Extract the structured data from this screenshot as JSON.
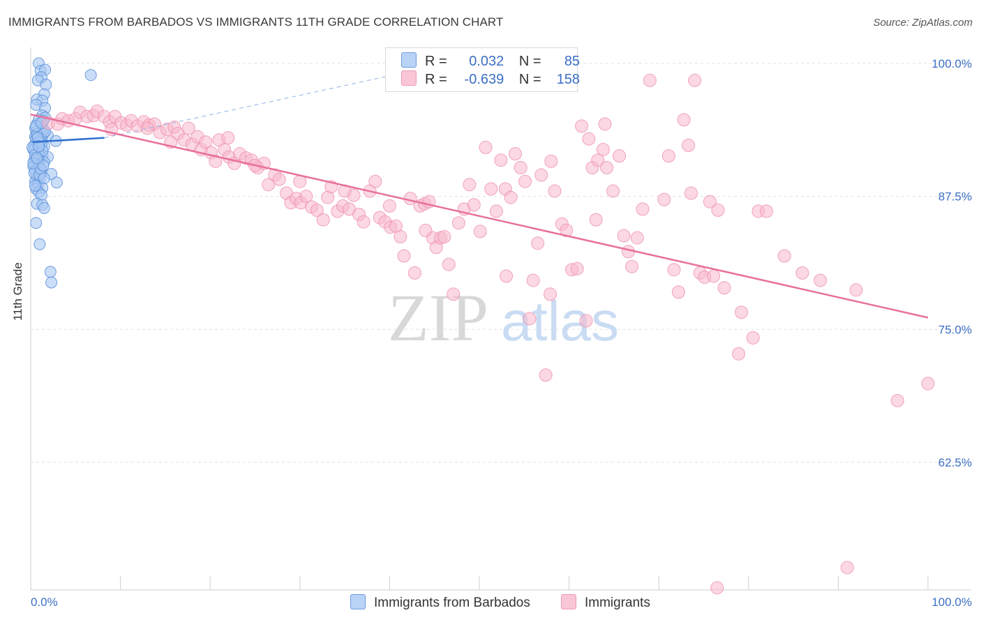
{
  "header": {
    "title": "IMMIGRANTS FROM BARBADOS VS IMMIGRANTS 11TH GRADE CORRELATION CHART",
    "source": "Source: ZipAtlas.com"
  },
  "legend": {
    "series1": {
      "r_label": "R =",
      "r_value": "0.032",
      "n_label": "N =",
      "n_value": "85"
    },
    "series2": {
      "r_label": "R =",
      "r_value": "-0.639",
      "n_label": "N =",
      "n_value": "158"
    }
  },
  "bottom_legend": {
    "series1": "Immigrants from Barbados",
    "series2": "Immigrants"
  },
  "colors": {
    "blue_fill": "#a8c8f4",
    "blue_stroke": "#5a8fd8",
    "blue_line": "#2f6fd0",
    "pink_fill": "#f7b8cc",
    "pink_stroke": "#ee8fae",
    "pink_line": "#e8709a",
    "tick_text": "#3b6fc4",
    "grid": "#e2e2e2"
  },
  "watermark": {
    "zip": "ZIP",
    "atlas": "atlas"
  },
  "chart_data": {
    "type": "scatter",
    "title": "IMMIGRANTS FROM BARBADOS VS IMMIGRANTS 11TH GRADE CORRELATION CHART",
    "xlabel": "",
    "ylabel": "11th Grade",
    "xlim": [
      0,
      100
    ],
    "ylim": [
      50.5,
      101.5
    ],
    "x_tick_labels": [
      "0.0%",
      "100.0%"
    ],
    "y_ticks": [
      100.0,
      87.5,
      75.0,
      62.5
    ],
    "y_tick_labels": [
      "100.0%",
      "87.5%",
      "75.0%",
      "62.5%"
    ],
    "grid": true,
    "legend_position": "top-center",
    "series": [
      {
        "name": "Immigrants from Barbados",
        "color": "#a8c8f4",
        "trend": {
          "x": [
            0.2,
            8.2
          ],
          "y": [
            92.6,
            93.0
          ],
          "extension_x": [
            8.2,
            42
          ],
          "extension_y": [
            93.0,
            99.2
          ]
        },
        "points": [
          [
            0.9,
            100.0
          ],
          [
            1.1,
            99.3
          ],
          [
            1.6,
            99.4
          ],
          [
            1.2,
            98.7
          ],
          [
            0.8,
            98.4
          ],
          [
            1.7,
            98.0
          ],
          [
            6.7,
            98.9
          ],
          [
            1.5,
            97.1
          ],
          [
            0.7,
            96.6
          ],
          [
            1.3,
            96.5
          ],
          [
            0.6,
            96.1
          ],
          [
            1.6,
            95.8
          ],
          [
            1.3,
            95.1
          ],
          [
            1.6,
            94.9
          ],
          [
            1.4,
            94.6
          ],
          [
            0.7,
            94.3
          ],
          [
            1.1,
            94.0
          ],
          [
            0.9,
            93.6
          ],
          [
            1.9,
            93.2
          ],
          [
            0.7,
            93.6
          ],
          [
            1.4,
            93.4
          ],
          [
            0.5,
            93.1
          ],
          [
            1.2,
            92.9
          ],
          [
            2.8,
            92.7
          ],
          [
            0.6,
            92.5
          ],
          [
            1.5,
            92.2
          ],
          [
            0.9,
            92.0
          ],
          [
            0.4,
            91.8
          ],
          [
            1.0,
            91.5
          ],
          [
            0.7,
            91.3
          ],
          [
            1.3,
            91.3
          ],
          [
            1.9,
            91.2
          ],
          [
            0.4,
            90.9
          ],
          [
            1.0,
            90.8
          ],
          [
            0.6,
            90.5
          ],
          [
            1.5,
            90.7
          ],
          [
            0.3,
            90.3
          ],
          [
            0.9,
            90.2
          ],
          [
            0.5,
            89.9
          ],
          [
            1.2,
            89.7
          ],
          [
            2.3,
            89.6
          ],
          [
            0.7,
            89.3
          ],
          [
            1.0,
            89.1
          ],
          [
            0.5,
            88.9
          ],
          [
            2.9,
            88.8
          ],
          [
            0.8,
            88.6
          ],
          [
            1.3,
            88.3
          ],
          [
            0.6,
            88.2
          ],
          [
            0.9,
            87.9
          ],
          [
            1.2,
            87.6
          ],
          [
            0.7,
            86.8
          ],
          [
            1.3,
            86.7
          ],
          [
            1.5,
            86.4
          ],
          [
            0.6,
            85.0
          ],
          [
            1.0,
            83.0
          ],
          [
            2.2,
            80.4
          ],
          [
            2.3,
            79.4
          ],
          [
            0.4,
            92.3
          ],
          [
            0.8,
            91.6
          ],
          [
            1.1,
            92.8
          ],
          [
            0.5,
            93.9
          ],
          [
            1.4,
            93.8
          ],
          [
            0.3,
            91.9
          ],
          [
            0.6,
            92.9
          ],
          [
            1.2,
            92.4
          ],
          [
            0.8,
            90.9
          ],
          [
            1.6,
            93.6
          ],
          [
            0.4,
            89.7
          ],
          [
            1.0,
            89.5
          ],
          [
            0.2,
            92.1
          ],
          [
            0.5,
            91.4
          ],
          [
            0.9,
            94.7
          ],
          [
            1.1,
            90.1
          ],
          [
            0.7,
            93.3
          ],
          [
            1.3,
            91.8
          ],
          [
            0.3,
            90.6
          ],
          [
            0.6,
            94.1
          ],
          [
            1.0,
            92.6
          ],
          [
            0.8,
            93.0
          ],
          [
            1.4,
            90.4
          ],
          [
            0.5,
            88.5
          ],
          [
            1.2,
            94.4
          ],
          [
            0.7,
            91.1
          ],
          [
            0.9,
            92.2
          ],
          [
            1.5,
            89.2
          ]
        ]
      },
      {
        "name": "Immigrants",
        "color": "#f7b8cc",
        "trend": {
          "x": [
            0.0,
            100.0
          ],
          "y": [
            95.2,
            76.1
          ]
        },
        "points": [
          [
            2.0,
            94.4
          ],
          [
            3.0,
            94.3
          ],
          [
            3.5,
            94.8
          ],
          [
            4.2,
            94.6
          ],
          [
            5.0,
            94.8
          ],
          [
            5.5,
            95.4
          ],
          [
            6.3,
            95.0
          ],
          [
            7.0,
            95.1
          ],
          [
            7.4,
            95.5
          ],
          [
            8.2,
            95.0
          ],
          [
            8.8,
            94.5
          ],
          [
            9.4,
            95.0
          ],
          [
            10.1,
            94.4
          ],
          [
            10.7,
            94.2
          ],
          [
            11.2,
            94.6
          ],
          [
            11.9,
            94.1
          ],
          [
            12.6,
            94.5
          ],
          [
            13.2,
            94.2
          ],
          [
            13.8,
            94.3
          ],
          [
            14.4,
            93.5
          ],
          [
            15.2,
            93.8
          ],
          [
            15.6,
            92.6
          ],
          [
            16.0,
            94.0
          ],
          [
            16.4,
            93.4
          ],
          [
            17.1,
            92.8
          ],
          [
            17.6,
            93.9
          ],
          [
            18.0,
            92.4
          ],
          [
            18.6,
            93.1
          ],
          [
            19.0,
            91.9
          ],
          [
            19.5,
            92.6
          ],
          [
            20.1,
            91.6
          ],
          [
            20.6,
            90.8
          ],
          [
            21.0,
            92.8
          ],
          [
            21.6,
            91.9
          ],
          [
            22.1,
            91.2
          ],
          [
            22.7,
            90.6
          ],
          [
            23.3,
            91.5
          ],
          [
            24.0,
            91.1
          ],
          [
            24.6,
            90.9
          ],
          [
            25.3,
            90.2
          ],
          [
            26.0,
            90.6
          ],
          [
            26.5,
            88.6
          ],
          [
            27.2,
            89.5
          ],
          [
            27.7,
            89.1
          ],
          [
            28.5,
            87.8
          ],
          [
            29.0,
            86.9
          ],
          [
            29.6,
            87.3
          ],
          [
            30.1,
            86.9
          ],
          [
            30.7,
            87.5
          ],
          [
            31.3,
            86.5
          ],
          [
            31.9,
            86.2
          ],
          [
            32.6,
            85.3
          ],
          [
            33.1,
            87.4
          ],
          [
            33.5,
            88.4
          ],
          [
            34.2,
            86.1
          ],
          [
            34.8,
            86.6
          ],
          [
            35.5,
            86.3
          ],
          [
            36.0,
            87.6
          ],
          [
            36.6,
            85.8
          ],
          [
            37.1,
            85.1
          ],
          [
            37.8,
            88.0
          ],
          [
            38.4,
            88.9
          ],
          [
            38.9,
            85.5
          ],
          [
            39.5,
            85.1
          ],
          [
            40.1,
            84.6
          ],
          [
            40.7,
            84.7
          ],
          [
            41.2,
            83.7
          ],
          [
            41.6,
            81.9
          ],
          [
            42.3,
            87.3
          ],
          [
            42.8,
            80.3
          ],
          [
            43.4,
            86.6
          ],
          [
            43.9,
            86.8
          ],
          [
            44.4,
            87.0
          ],
          [
            44.8,
            83.6
          ],
          [
            45.2,
            82.7
          ],
          [
            45.7,
            83.6
          ],
          [
            46.1,
            83.7
          ],
          [
            46.6,
            81.1
          ],
          [
            47.1,
            78.3
          ],
          [
            47.7,
            85.0
          ],
          [
            48.3,
            86.3
          ],
          [
            48.9,
            88.6
          ],
          [
            49.4,
            86.7
          ],
          [
            50.1,
            84.2
          ],
          [
            50.7,
            92.1
          ],
          [
            51.3,
            88.2
          ],
          [
            51.9,
            86.1
          ],
          [
            52.4,
            90.9
          ],
          [
            52.9,
            88.2
          ],
          [
            53.5,
            87.4
          ],
          [
            54.0,
            91.5
          ],
          [
            54.6,
            90.2
          ],
          [
            55.1,
            88.9
          ],
          [
            55.6,
            76.0
          ],
          [
            56.0,
            79.6
          ],
          [
            56.5,
            83.1
          ],
          [
            56.9,
            89.5
          ],
          [
            57.4,
            70.7
          ],
          [
            57.9,
            78.3
          ],
          [
            58.4,
            88.0
          ],
          [
            59.2,
            84.9
          ],
          [
            59.7,
            84.3
          ],
          [
            60.3,
            80.6
          ],
          [
            60.9,
            80.7
          ],
          [
            61.4,
            94.1
          ],
          [
            61.9,
            75.8
          ],
          [
            62.2,
            92.9
          ],
          [
            62.6,
            90.2
          ],
          [
            63.2,
            90.9
          ],
          [
            63.8,
            91.9
          ],
          [
            64.2,
            90.2
          ],
          [
            64.9,
            88.0
          ],
          [
            65.6,
            91.3
          ],
          [
            66.1,
            83.8
          ],
          [
            66.6,
            82.3
          ],
          [
            67.0,
            80.9
          ],
          [
            67.6,
            83.6
          ],
          [
            68.2,
            86.3
          ],
          [
            69.0,
            98.4
          ],
          [
            70.6,
            87.2
          ],
          [
            71.1,
            91.3
          ],
          [
            71.7,
            80.6
          ],
          [
            72.2,
            78.5
          ],
          [
            72.8,
            94.7
          ],
          [
            73.3,
            92.3
          ],
          [
            73.6,
            87.8
          ],
          [
            74.6,
            80.3
          ],
          [
            75.1,
            79.9
          ],
          [
            75.7,
            87.0
          ],
          [
            76.1,
            80.0
          ],
          [
            76.6,
            86.2
          ],
          [
            77.3,
            78.9
          ],
          [
            79.2,
            76.6
          ],
          [
            78.9,
            72.7
          ],
          [
            80.5,
            74.2
          ],
          [
            81.1,
            86.1
          ],
          [
            82.0,
            86.1
          ],
          [
            74.0,
            98.4
          ],
          [
            92.0,
            78.7
          ],
          [
            96.6,
            68.3
          ],
          [
            100.0,
            69.9
          ],
          [
            91.0,
            52.6
          ],
          [
            76.5,
            50.7
          ],
          [
            64.0,
            94.3
          ],
          [
            13.0,
            93.9
          ],
          [
            22.0,
            93.0
          ],
          [
            9.0,
            93.8
          ],
          [
            25.0,
            90.4
          ],
          [
            35.0,
            88.0
          ],
          [
            58.0,
            90.8
          ],
          [
            63.0,
            85.3
          ],
          [
            86.0,
            80.3
          ],
          [
            88.0,
            79.6
          ],
          [
            84.0,
            81.9
          ],
          [
            53.0,
            80.0
          ],
          [
            44.0,
            84.3
          ],
          [
            40.0,
            86.6
          ],
          [
            30.0,
            88.9
          ]
        ]
      }
    ]
  }
}
